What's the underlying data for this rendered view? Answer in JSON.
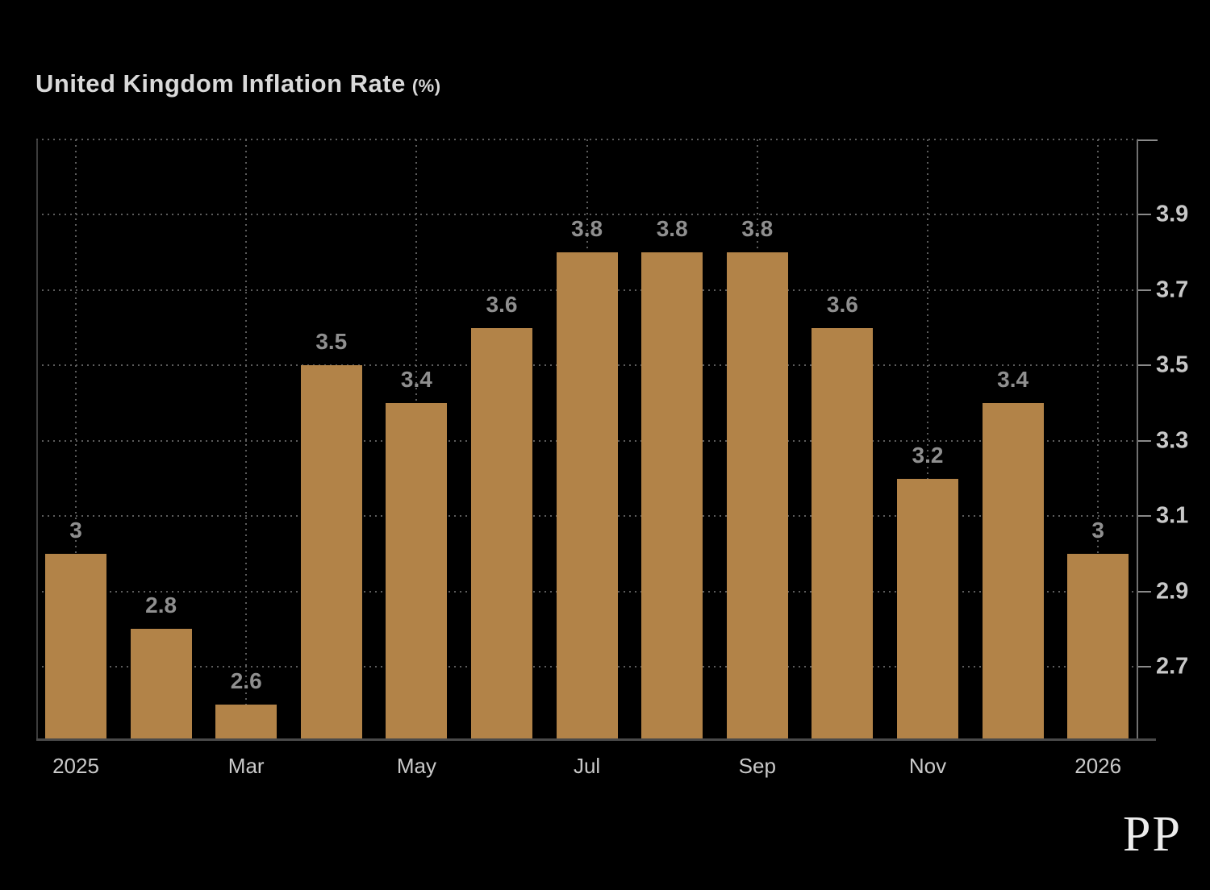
{
  "page": {
    "background": "#000000"
  },
  "header": {
    "title": "United Kingdom Inflation Rate",
    "unit": "(%)"
  },
  "branding": {
    "logo_text": "PP"
  },
  "chart_data": {
    "type": "bar",
    "title": "United Kingdom Inflation Rate (%)",
    "categories": [
      "2025",
      "",
      "Mar",
      "",
      "May",
      "",
      "Jul",
      "",
      "Sep",
      "",
      "Nov",
      "",
      "2026"
    ],
    "values": [
      3,
      2.8,
      2.6,
      3.5,
      3.4,
      3.6,
      3.8,
      3.8,
      3.8,
      3.6,
      3.2,
      3.4,
      3
    ],
    "bar_labels": [
      "3",
      "2.8",
      "2.6",
      "3.5",
      "3.4",
      "3.6",
      "3.8",
      "3.8",
      "3.8",
      "3.6",
      "3.2",
      "3.4",
      "3"
    ],
    "y_ticks": [
      2.7,
      2.9,
      3.1,
      3.3,
      3.5,
      3.7,
      3.9
    ],
    "ylim": [
      2.51,
      4.1
    ],
    "y_axis_side": "right",
    "xlabel": "",
    "ylabel": "",
    "legend": "none",
    "grid": {
      "horizontal": true,
      "vertical": true,
      "style": "dotted"
    },
    "colors": {
      "bar": "#b28348",
      "background": "#000000",
      "grid": "#5c5c5c",
      "bar_label": "#8f8f8f",
      "y_axis_label": "#c8c8c8",
      "x_axis_label": "#c9c9c9",
      "title": "#d9d9d9",
      "axis_left": "#3c3c3c",
      "axis_right": "#707070",
      "axis_bottom": "#4a4a4a",
      "logo": "#ececec"
    }
  }
}
